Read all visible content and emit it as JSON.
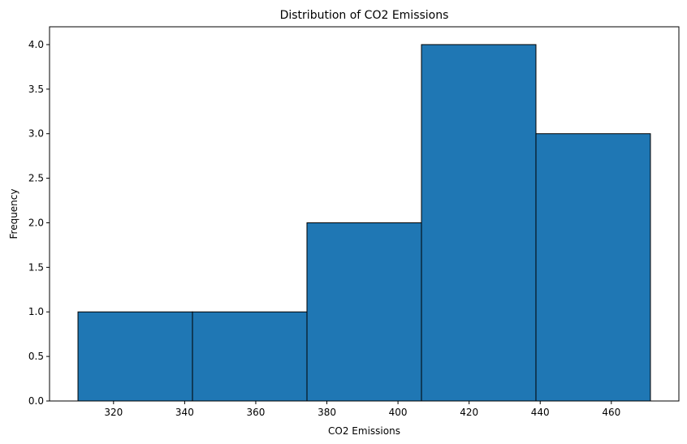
{
  "chart_data": {
    "type": "bar",
    "title": "Distribution of CO2 Emissions",
    "xlabel": "CO2 Emissions",
    "ylabel": "Frequency",
    "bins": [
      {
        "start": 310,
        "end": 342.2,
        "count": 1
      },
      {
        "start": 342.2,
        "end": 374.4,
        "count": 1
      },
      {
        "start": 374.4,
        "end": 406.6,
        "count": 2
      },
      {
        "start": 406.6,
        "end": 438.8,
        "count": 4
      },
      {
        "start": 438.8,
        "end": 471,
        "count": 3
      }
    ],
    "xlim": [
      302,
      479
    ],
    "ylim": [
      0,
      4.2
    ],
    "xticks": [
      320,
      340,
      360,
      380,
      400,
      420,
      440,
      460
    ],
    "yticks": [
      0.0,
      0.5,
      1.0,
      1.5,
      2.0,
      2.5,
      3.0,
      3.5,
      4.0
    ],
    "xtick_labels": [
      "320",
      "340",
      "360",
      "380",
      "400",
      "420",
      "440",
      "460"
    ],
    "ytick_labels": [
      "0.0",
      "0.5",
      "1.0",
      "1.5",
      "2.0",
      "2.5",
      "3.0",
      "3.5",
      "4.0"
    ],
    "grid": false,
    "bar_color": "#1f77b4",
    "edge_color": "#000000"
  }
}
